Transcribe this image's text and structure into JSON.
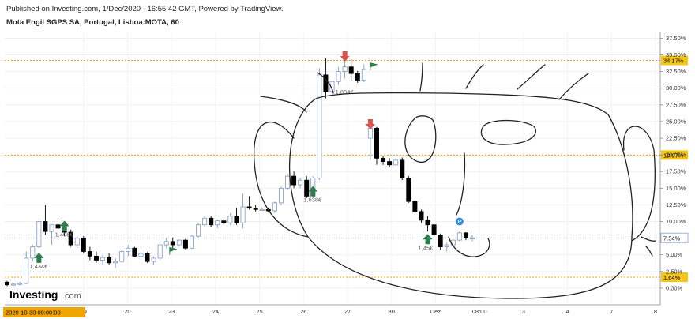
{
  "header": {
    "published": "Published on Investing.com, 1/Dec/2020 - 16:55:42 GMT, Powered by TradingView.",
    "title": "Mota Engil SGPS SA, Portugal, Lisboa:MOTA, 60"
  },
  "logo": {
    "main": "Investing",
    "suffix": ".com"
  },
  "colors": {
    "up": "#ffffff",
    "down": "#000000",
    "level": "#f0a500",
    "badge": "#f5c518",
    "arrow_up": "#2e7d4f",
    "arrow_down": "#d9534f",
    "flag": "#2e7d4f"
  },
  "chart_data": {
    "type": "candlestick",
    "y_unit": "%",
    "ylim": [
      -2.5,
      38.5
    ],
    "y_ticks": [
      "37.50%",
      "35.00%",
      "32.50%",
      "30.00%",
      "27.50%",
      "25.00%",
      "22.50%",
      "20.00%",
      "17.50%",
      "15.00%",
      "12.50%",
      "10.00%",
      "5.00%",
      "2.50%",
      "0.00%"
    ],
    "x_ticks": [
      "19",
      "20",
      "23",
      "24",
      "25",
      "26",
      "27",
      "30",
      "Dez",
      "08:00",
      "3",
      "4",
      "7",
      "8"
    ],
    "x_start_label": "2020-10-30 09:00:00",
    "levels": [
      {
        "value": 34.17,
        "label": "34.17%"
      },
      {
        "value": 19.97,
        "label": "19.97%"
      },
      {
        "value": 1.64,
        "label": "1.64%"
      }
    ],
    "last_price_label": "7.54%",
    "candles": [
      [
        0.9,
        1.1,
        0.3,
        0.5
      ],
      [
        0.5,
        0.8,
        0.3,
        0.6
      ],
      [
        0.6,
        1.0,
        0.4,
        0.7
      ],
      [
        0.7,
        5.5,
        0.6,
        4.5
      ],
      [
        4.5,
        6.5,
        4.0,
        6.2
      ],
      [
        6.2,
        10.5,
        6.0,
        10.0
      ],
      [
        10.0,
        12.5,
        8.0,
        8.5
      ],
      [
        8.5,
        9.5,
        6.5,
        9.5
      ],
      [
        9.5,
        10.2,
        8.8,
        9.0
      ],
      [
        9.0,
        9.5,
        7.8,
        8.4
      ],
      [
        8.4,
        8.8,
        6.2,
        6.5
      ],
      [
        6.5,
        7.8,
        6.0,
        7.5
      ],
      [
        7.5,
        7.8,
        5.2,
        5.5
      ],
      [
        5.5,
        6.2,
        4.2,
        4.8
      ],
      [
        4.8,
        5.5,
        3.8,
        4.2
      ],
      [
        4.2,
        5.0,
        3.5,
        4.6
      ],
      [
        4.6,
        5.2,
        3.5,
        3.8
      ],
      [
        3.8,
        4.5,
        3.0,
        4.0
      ],
      [
        4.0,
        5.8,
        3.8,
        5.5
      ],
      [
        5.5,
        6.5,
        4.8,
        6.0
      ],
      [
        6.0,
        6.2,
        4.6,
        4.8
      ],
      [
        4.8,
        5.5,
        4.3,
        5.2
      ],
      [
        5.2,
        5.4,
        3.8,
        4.0
      ],
      [
        4.0,
        4.8,
        3.5,
        4.5
      ],
      [
        4.5,
        7.0,
        4.3,
        6.5
      ],
      [
        6.5,
        7.5,
        6.0,
        7.0
      ],
      [
        7.0,
        7.6,
        6.0,
        6.5
      ],
      [
        6.5,
        7.3,
        6.2,
        7.2
      ],
      [
        7.2,
        7.4,
        5.8,
        6.0
      ],
      [
        6.0,
        8.0,
        5.9,
        7.8
      ],
      [
        7.8,
        9.8,
        7.5,
        9.5
      ],
      [
        9.5,
        10.8,
        9.2,
        10.5
      ],
      [
        10.5,
        10.8,
        9.2,
        9.5
      ],
      [
        9.5,
        10.3,
        9.0,
        10.1
      ],
      [
        10.1,
        10.4,
        9.6,
        9.8
      ],
      [
        9.8,
        11.2,
        9.5,
        10.8
      ],
      [
        10.8,
        12.0,
        9.5,
        9.8
      ],
      [
        9.8,
        14.2,
        9.0,
        12.2
      ],
      [
        12.2,
        13.8,
        11.8,
        12.0
      ],
      [
        12.0,
        12.5,
        11.5,
        11.8
      ],
      [
        11.8,
        12.1,
        11.6,
        11.8
      ],
      [
        11.8,
        12.0,
        11.4,
        11.6
      ],
      [
        11.6,
        13.0,
        11.3,
        12.8
      ],
      [
        12.8,
        15.2,
        12.5,
        15.0
      ],
      [
        15.0,
        17.2,
        14.8,
        16.8
      ],
      [
        16.8,
        17.5,
        15.0,
        15.5
      ],
      [
        15.5,
        16.5,
        15.0,
        16.2
      ],
      [
        16.2,
        16.8,
        13.5,
        13.8
      ],
      [
        13.8,
        16.8,
        13.5,
        16.5
      ],
      [
        16.5,
        33.0,
        16.2,
        32.0
      ],
      [
        32.0,
        34.5,
        28.5,
        29.5
      ],
      [
        29.5,
        31.5,
        29.0,
        31.0
      ],
      [
        31.0,
        33.2,
        30.5,
        32.5
      ],
      [
        32.5,
        34.2,
        31.5,
        33.2
      ],
      [
        33.2,
        34.4,
        31.0,
        32.2
      ],
      [
        32.2,
        32.6,
        30.8,
        31.2
      ],
      [
        31.2,
        33.6,
        30.9,
        32.8
      ],
      [
        22.5,
        24.0,
        19.2,
        24.0
      ],
      [
        24.0,
        24.2,
        18.5,
        19.5
      ],
      [
        19.5,
        19.8,
        18.5,
        19.0
      ],
      [
        19.0,
        19.5,
        18.2,
        18.5
      ],
      [
        18.5,
        19.5,
        18.3,
        19.2
      ],
      [
        19.2,
        19.6,
        16.2,
        16.5
      ],
      [
        16.5,
        16.8,
        12.8,
        13.0
      ],
      [
        13.0,
        13.3,
        11.2,
        11.5
      ],
      [
        11.5,
        11.8,
        9.8,
        10.2
      ],
      [
        10.2,
        10.8,
        8.5,
        9.5
      ],
      [
        9.5,
        9.8,
        7.5,
        8.0
      ],
      [
        8.0,
        8.2,
        5.8,
        6.2
      ],
      [
        6.2,
        6.8,
        5.5,
        6.5
      ],
      [
        6.5,
        7.5,
        6.2,
        7.2
      ],
      [
        7.2,
        8.5,
        7.0,
        8.3
      ],
      [
        8.3,
        8.4,
        7.2,
        7.5
      ],
      [
        7.5,
        8.0,
        7.0,
        7.54
      ]
    ],
    "annotations": [
      {
        "text": "1,434€",
        "kind": "buy",
        "price": 3.2
      },
      {
        "text": "1,408€",
        "kind": "buy",
        "price": 8.0
      },
      {
        "text": "1,638€",
        "kind": "buy",
        "price": 13.2
      },
      {
        "text": "1,45€",
        "kind": "buy",
        "price": 6.0
      },
      {
        "text": "1,804€",
        "kind": "sell",
        "price": 29.4
      }
    ]
  }
}
